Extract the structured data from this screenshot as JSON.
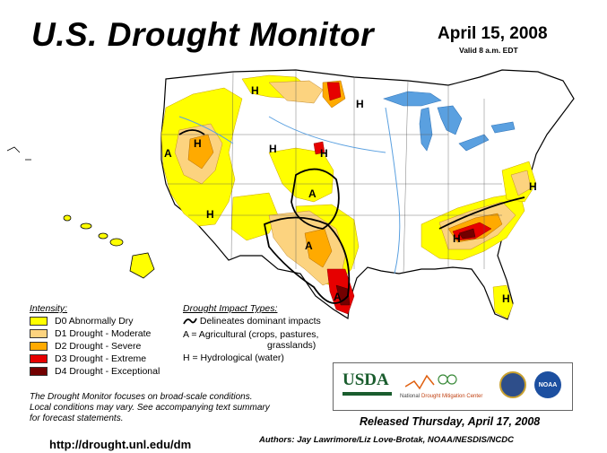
{
  "header": {
    "title": "U.S. Drought Monitor",
    "date": "April 15, 2008",
    "valid": "Valid 8 a.m. EDT"
  },
  "legend": {
    "title": "Intensity:",
    "items": [
      {
        "label": "D0 Abnormally Dry",
        "color": "#ffff00"
      },
      {
        "label": "D1 Drought - Moderate",
        "color": "#fcd37f"
      },
      {
        "label": "D2 Drought - Severe",
        "color": "#ffaa00"
      },
      {
        "label": "D3 Drought - Extreme",
        "color": "#e60000"
      },
      {
        "label": "D4 Drought - Exceptional",
        "color": "#730000"
      }
    ]
  },
  "impacts": {
    "title": "Drought Impact Types:",
    "line1": "Delineates dominant impacts",
    "line2": "A = Agricultural (crops, pastures,",
    "line3": "grasslands)",
    "line4": "H = Hydrological (water)"
  },
  "map_labels": {
    "H": "H",
    "A": "A"
  },
  "notes": {
    "line1": "The Drought Monitor focuses on broad-scale conditions.",
    "line2": "Local conditions may vary. See accompanying text summary",
    "line3": "for forecast statements."
  },
  "url": "http://drought.unl.edu/dm",
  "logos": {
    "usda": "USDA",
    "ndmc_line1": "National",
    "ndmc_line2": "Drought Mitigation Center",
    "noaa": "NOAA"
  },
  "released": "Released Thursday, April 17, 2008",
  "authors": "Authors: Jay Lawrimore/Liz Love-Brotak, NOAA/NESDIS/NCDC",
  "colors": {
    "water": "#5aa0e0",
    "d0": "#ffff00",
    "d1": "#fcd37f",
    "d2": "#ffaa00",
    "d3": "#e60000",
    "d4": "#730000"
  }
}
